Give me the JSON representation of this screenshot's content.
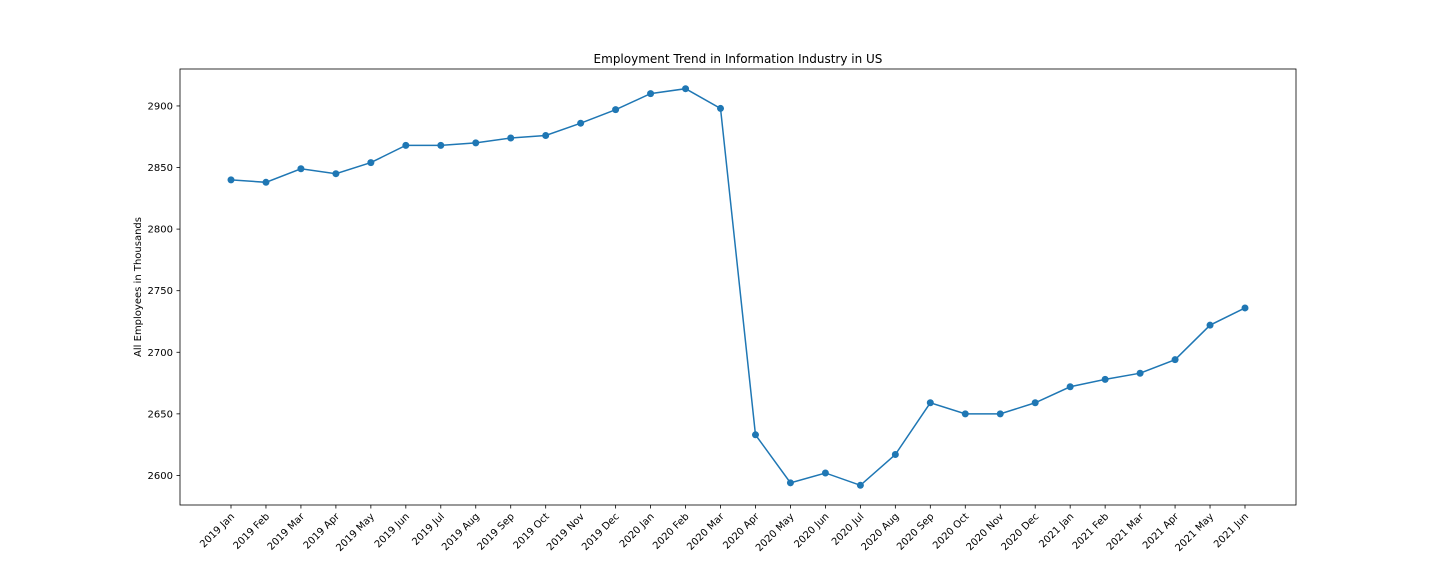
{
  "chart_data": {
    "type": "line",
    "title": "Employment Trend in Information Industry in US",
    "xlabel": "",
    "ylabel": "All Employees in Thousands",
    "ylim": [
      2576,
      2930
    ],
    "yticks": [
      2600,
      2650,
      2700,
      2750,
      2800,
      2850,
      2900
    ],
    "grid": false,
    "markers": true,
    "line_color": "#1f77b4",
    "categories": [
      "2019 Jan",
      "2019 Feb",
      "2019 Mar",
      "2019 Apr",
      "2019 May",
      "2019 Jun",
      "2019 Jul",
      "2019 Aug",
      "2019 Sep",
      "2019 Oct",
      "2019 Nov",
      "2019 Dec",
      "2020 Jan",
      "2020 Feb",
      "2020 Mar",
      "2020 Apr",
      "2020 May",
      "2020 Jun",
      "2020 Jul",
      "2020 Aug",
      "2020 Sep",
      "2020 Oct",
      "2020 Nov",
      "2020 Dec",
      "2021 Jan",
      "2021 Feb",
      "2021 Mar",
      "2021 Apr",
      "2021 May",
      "2021 Jun"
    ],
    "series": [
      {
        "values": [
          2840,
          2838,
          2849,
          2845,
          2854,
          2868,
          2868,
          2870,
          2874,
          2876,
          2886,
          2897,
          2910,
          2914,
          2898,
          2633,
          2594,
          2602,
          2592,
          2617,
          2659,
          2650,
          2650,
          2659,
          2672,
          2678,
          2683,
          2694,
          2722,
          2736
        ]
      }
    ]
  }
}
